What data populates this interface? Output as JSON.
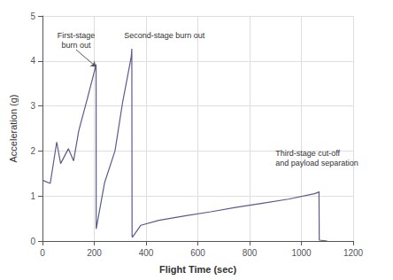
{
  "chart_data": {
    "type": "line",
    "xlabel": "Flight Time (sec)",
    "ylabel": "Acceleration (g)",
    "xlim": [
      0,
      1200
    ],
    "ylim": [
      0,
      5
    ],
    "xticks": [
      0,
      200,
      400,
      600,
      800,
      1000,
      1200
    ],
    "yticks": [
      0,
      1,
      2,
      3,
      4,
      5
    ],
    "color": "#5a5a8a",
    "grid": true,
    "x": [
      0,
      30,
      55,
      70,
      100,
      120,
      140,
      175,
      205,
      207,
      207.5,
      207.5,
      240,
      280,
      310,
      335,
      343,
      345,
      346,
      347,
      347,
      380,
      450,
      550,
      650,
      750,
      850,
      950,
      1050,
      1065,
      1068,
      1069,
      1100
    ],
    "values": [
      1.35,
      1.28,
      2.2,
      1.72,
      2.05,
      1.78,
      2.45,
      3.2,
      3.87,
      3.92,
      0.27,
      0.27,
      1.3,
      2.0,
      3.1,
      3.85,
      4.1,
      4.27,
      0.12,
      0.08,
      0.08,
      0.35,
      0.46,
      0.56,
      0.65,
      0.75,
      0.84,
      0.93,
      1.05,
      1.08,
      1.1,
      0.02,
      0.0
    ],
    "annotations": [
      {
        "text": "First-stage\nburn out",
        "xytext": [
          130,
          4.25
        ],
        "xy": [
          207,
          3.87
        ]
      },
      {
        "text": "Second-stage burn out",
        "xytext": [
          315,
          4.45
        ]
      },
      {
        "text": "Third-stage cut-off\nand payload separation",
        "xytext": [
          900,
          1.62
        ]
      }
    ]
  }
}
